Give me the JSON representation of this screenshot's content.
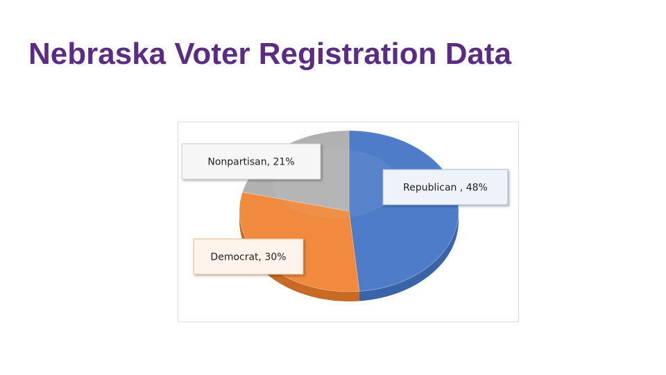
{
  "slide": {
    "title": "Nebraska Voter Registration Data",
    "title_color": "#5b2c83"
  },
  "chart_data": {
    "type": "pie",
    "style": "3d",
    "slices": [
      {
        "label": "Republican",
        "display_label": "Republican , 48%",
        "value": 48,
        "color": "#4f7cc8",
        "side_color": "#3a63a8"
      },
      {
        "label": "Democrat",
        "display_label": "Democrat, 30%",
        "value": 30,
        "color": "#ef8a3e",
        "side_color": "#c86a24"
      },
      {
        "label": "Nonpartisan",
        "display_label": "Nonpartisan, 21%",
        "value": 21,
        "color": "#b1b1b1",
        "side_color": "#8d8d8d"
      }
    ]
  }
}
